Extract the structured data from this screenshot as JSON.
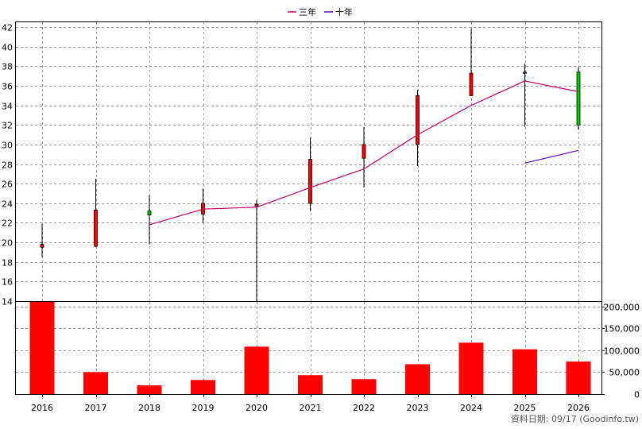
{
  "legend": [
    {
      "label": "三年",
      "color": "#cc0066"
    },
    {
      "label": "十年",
      "color": "#6600cc"
    }
  ],
  "footer": "資料日期: 09/17  (Goodinfo.tw)",
  "colors": {
    "up": "#ff0000",
    "down": "#00cc00",
    "volume": "#ff0000",
    "grid": "#999999"
  },
  "chart_data": [
    {
      "type": "candlestick",
      "categories": [
        "2016",
        "2017",
        "2018",
        "2019",
        "2020",
        "2021",
        "2022",
        "2023",
        "2024",
        "2025",
        "2026"
      ],
      "ylim": [
        14,
        42.5
      ],
      "yticks": [
        14,
        16,
        18,
        20,
        22,
        24,
        26,
        28,
        30,
        32,
        34,
        36,
        38,
        40,
        42
      ],
      "grid": true,
      "legend_position": "top-center",
      "candles": [
        {
          "open": 19.5,
          "close": 19.8,
          "high": 21.9,
          "low": 18.5,
          "color": "up"
        },
        {
          "open": 19.6,
          "close": 23.3,
          "high": 26.5,
          "low": 19.5,
          "color": "up"
        },
        {
          "open": 22.8,
          "close": 23.2,
          "high": 24.8,
          "low": 19.8,
          "color": "down"
        },
        {
          "open": 22.9,
          "close": 24.0,
          "high": 25.5,
          "low": 22.0,
          "color": "up"
        },
        {
          "open": 23.7,
          "close": 23.9,
          "high": 24.3,
          "low": 14.0,
          "color": "up"
        },
        {
          "open": 24.0,
          "close": 28.5,
          "high": 30.7,
          "low": 23.2,
          "color": "up"
        },
        {
          "open": 28.6,
          "close": 30.0,
          "high": 31.8,
          "low": 25.6,
          "color": "up"
        },
        {
          "open": 30.0,
          "close": 35.0,
          "high": 35.6,
          "low": 27.8,
          "color": "up"
        },
        {
          "open": 35.0,
          "close": 37.3,
          "high": 41.8,
          "low": 35.0,
          "color": "up"
        },
        {
          "open": 37.3,
          "close": 37.4,
          "high": 38.3,
          "low": 31.8,
          "color": "up"
        },
        {
          "open": 37.4,
          "close": 32.0,
          "high": 37.9,
          "low": 31.5,
          "color": "down"
        }
      ],
      "lines": [
        {
          "name": "三年",
          "color": "#cc0066",
          "values": [
            null,
            null,
            21.8,
            23.4,
            23.6,
            25.6,
            27.5,
            31.0,
            34.0,
            36.5,
            35.4
          ]
        },
        {
          "name": "十年",
          "color": "#6600cc",
          "values": [
            null,
            null,
            null,
            null,
            null,
            null,
            null,
            null,
            null,
            28.1,
            29.4
          ]
        }
      ]
    },
    {
      "type": "bar",
      "categories": [
        "2016",
        "2017",
        "2018",
        "2019",
        "2020",
        "2021",
        "2022",
        "2023",
        "2024",
        "2025",
        "2026"
      ],
      "values": [
        210000,
        50000,
        20000,
        32000,
        108000,
        43000,
        34000,
        68000,
        117000,
        102000,
        74000
      ],
      "ylim": [
        0,
        210000
      ],
      "yticks": [
        0,
        50000,
        100000,
        150000,
        200000
      ],
      "ytick_labels": [
        "0",
        "50,000",
        "100,000",
        "150,000",
        "200,000"
      ],
      "grid": true
    }
  ]
}
